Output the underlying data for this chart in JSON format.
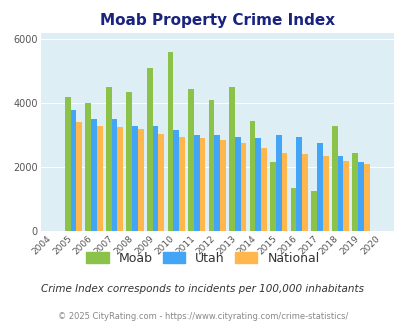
{
  "title": "Moab Property Crime Index",
  "years": [
    2004,
    2005,
    2006,
    2007,
    2008,
    2009,
    2010,
    2011,
    2012,
    2013,
    2014,
    2015,
    2016,
    2017,
    2018,
    2019,
    2020
  ],
  "moab": [
    0,
    4200,
    4000,
    4500,
    4350,
    5100,
    5600,
    4450,
    4100,
    4500,
    3450,
    2150,
    1350,
    1250,
    3300,
    2450,
    0
  ],
  "utah": [
    0,
    3800,
    3500,
    3500,
    3300,
    3300,
    3150,
    3000,
    3000,
    2950,
    2900,
    3000,
    2950,
    2750,
    2350,
    2150,
    0
  ],
  "national": [
    0,
    3400,
    3300,
    3250,
    3200,
    3050,
    2950,
    2900,
    2850,
    2750,
    2600,
    2450,
    2400,
    2350,
    2200,
    2100,
    0
  ],
  "moab_color": "#8bc34a",
  "utah_color": "#42a5f5",
  "national_color": "#ffb74d",
  "bg_color": "#ddeef4",
  "title_color": "#1a237e",
  "subtitle": "Crime Index corresponds to incidents per 100,000 inhabitants",
  "subtitle_color": "#333333",
  "footer": "© 2025 CityRating.com - https://www.cityrating.com/crime-statistics/",
  "footer_color": "#888888",
  "ylim": [
    0,
    6200
  ],
  "yticks": [
    0,
    2000,
    4000,
    6000
  ],
  "bar_width": 0.28,
  "legend_labels": [
    "Moab",
    "Utah",
    "National"
  ],
  "legend_label_color": "#333333"
}
